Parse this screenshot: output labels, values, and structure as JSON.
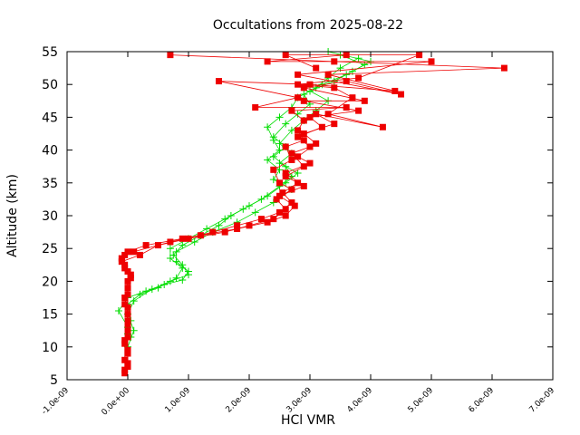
{
  "chart_data": {
    "type": "line",
    "title": "Occultations from 2025-08-22",
    "xlabel": "HCl VMR",
    "ylabel": "Altitude (km)",
    "xlim": [
      -1e-09,
      7e-09
    ],
    "ylim": [
      5,
      55
    ],
    "x_ticks": [
      {
        "value": -1e-09,
        "label": "-1.0e-09"
      },
      {
        "value": 0,
        "label": "0.0e+00"
      },
      {
        "value": 1e-09,
        "label": "1.0e-09"
      },
      {
        "value": 2e-09,
        "label": "2.0e-09"
      },
      {
        "value": 3e-09,
        "label": "3.0e-09"
      },
      {
        "value": 4e-09,
        "label": "4.0e-09"
      },
      {
        "value": 5e-09,
        "label": "5.0e-09"
      },
      {
        "value": 6e-09,
        "label": "6.0e-09"
      },
      {
        "value": 7e-09,
        "label": "7.0e-09"
      }
    ],
    "y_ticks": [
      {
        "value": 5,
        "label": "5"
      },
      {
        "value": 10,
        "label": "10"
      },
      {
        "value": 15,
        "label": "15"
      },
      {
        "value": 20,
        "label": "20"
      },
      {
        "value": 25,
        "label": "25"
      },
      {
        "value": 30,
        "label": "30"
      },
      {
        "value": 35,
        "label": "35"
      },
      {
        "value": 40,
        "label": "40"
      },
      {
        "value": 45,
        "label": "45"
      },
      {
        "value": 50,
        "label": "50"
      },
      {
        "value": 55,
        "label": "55"
      }
    ],
    "grid": false,
    "legend": "none",
    "series": [
      {
        "color": "#00dd00",
        "marker": "plus",
        "profiles": [
          [
            [
              5e-11,
              11.5
            ],
            [
              0.0,
              13
            ],
            [
              -1.5e-10,
              15.5
            ],
            [
              0.0,
              17.5
            ],
            [
              3e-10,
              18.5
            ],
            [
              6e-10,
              19.5
            ],
            [
              9e-10,
              20.2
            ],
            [
              1e-09,
              21.5
            ],
            [
              8e-10,
              23
            ],
            [
              8e-10,
              24.5
            ],
            [
              1.1e-09,
              26
            ],
            [
              1.4e-09,
              27.5
            ],
            [
              1.8e-09,
              29
            ],
            [
              2.1e-09,
              30.5
            ],
            [
              2.4e-09,
              32
            ],
            [
              2.7e-09,
              34
            ],
            [
              2.4e-09,
              35.5
            ],
            [
              2.5e-09,
              37
            ],
            [
              2.3e-09,
              38.5
            ],
            [
              2.5e-09,
              40
            ],
            [
              2.4e-09,
              41.5
            ],
            [
              2.3e-09,
              43.5
            ],
            [
              2.5e-09,
              45
            ],
            [
              2.7e-09,
              46.5
            ],
            [
              2.8e-09,
              48
            ],
            [
              3.1e-09,
              49.5
            ],
            [
              3.3e-09,
              51
            ],
            [
              3.5e-09,
              52.5
            ],
            [
              3.8e-09,
              54
            ]
          ],
          [
            [
              0.0,
              12
            ],
            [
              5e-11,
              14
            ],
            [
              0.0,
              16.5
            ],
            [
              2e-10,
              18
            ],
            [
              5e-10,
              19
            ],
            [
              8e-10,
              20.5
            ],
            [
              9e-10,
              22
            ],
            [
              7e-10,
              23.5
            ],
            [
              7e-10,
              25
            ],
            [
              1e-09,
              26.5
            ],
            [
              1.3e-09,
              28
            ],
            [
              1.6e-09,
              29.5
            ],
            [
              1.9e-09,
              31
            ],
            [
              2.2e-09,
              32.5
            ],
            [
              2.5e-09,
              34.5
            ],
            [
              2.7e-09,
              36
            ],
            [
              2.6e-09,
              37.5
            ],
            [
              2.4e-09,
              39
            ],
            [
              2.6e-09,
              40.5
            ],
            [
              2.4e-09,
              42
            ],
            [
              2.6e-09,
              44
            ],
            [
              2.8e-09,
              45.5
            ],
            [
              3e-09,
              47
            ],
            [
              2.9e-09,
              48.5
            ],
            [
              3.2e-09,
              50
            ],
            [
              3.6e-09,
              51.5
            ],
            [
              3.9e-09,
              53
            ],
            [
              3.5e-09,
              54.5
            ]
          ],
          [
            [
              0.0,
              10
            ],
            [
              1e-10,
              12.5
            ],
            [
              0.0,
              15
            ],
            [
              1e-10,
              17
            ],
            [
              4e-10,
              18.8
            ],
            [
              7e-10,
              20
            ],
            [
              1e-09,
              21
            ],
            [
              9e-10,
              22.5
            ],
            [
              7.5e-10,
              24
            ],
            [
              9e-10,
              25.5
            ],
            [
              1.2e-09,
              27
            ],
            [
              1.5e-09,
              28.5
            ],
            [
              1.7e-09,
              30
            ],
            [
              2e-09,
              31.5
            ],
            [
              2.3e-09,
              33
            ],
            [
              2.6e-09,
              35
            ],
            [
              2.8e-09,
              36.5
            ],
            [
              2.5e-09,
              38
            ],
            [
              2.7e-09,
              39.5
            ],
            [
              2.5e-09,
              41
            ],
            [
              2.7e-09,
              43
            ],
            [
              2.9e-09,
              44.5
            ],
            [
              3.1e-09,
              46
            ],
            [
              3.3e-09,
              47.5
            ],
            [
              3e-09,
              49
            ],
            [
              3.4e-09,
              50.5
            ],
            [
              3.7e-09,
              52
            ],
            [
              4e-09,
              53.5
            ],
            [
              3.3e-09,
              55
            ]
          ]
        ]
      },
      {
        "color": "#ee0000",
        "marker": "square",
        "profiles": [
          [
            [
              -5e-11,
              6.5
            ],
            [
              -5e-11,
              8
            ],
            [
              -5e-11,
              10.5
            ],
            [
              0.0,
              12.5
            ],
            [
              0.0,
              15
            ],
            [
              -5e-11,
              17.5
            ],
            [
              0.0,
              20
            ],
            [
              0.0,
              21.5
            ],
            [
              -1e-10,
              23
            ],
            [
              2e-10,
              24
            ],
            [
              5e-10,
              25.5
            ],
            [
              1e-09,
              26.5
            ],
            [
              1.6e-09,
              27.5
            ],
            [
              2e-09,
              28.5
            ],
            [
              2.4e-09,
              29.5
            ],
            [
              2.6e-09,
              31
            ],
            [
              2.45e-09,
              32.5
            ],
            [
              2.7e-09,
              34
            ],
            [
              2.5e-09,
              35
            ],
            [
              2.4e-09,
              37
            ],
            [
              2.7e-09,
              38.5
            ],
            [
              2.6e-09,
              40.5
            ],
            [
              2.9e-09,
              41.5
            ],
            [
              2.8e-09,
              43
            ],
            [
              2.9e-09,
              44.5
            ],
            [
              2.7e-09,
              46
            ],
            [
              3.6e-09,
              46.5
            ],
            [
              2.1e-09,
              46.5
            ],
            [
              2.8e-09,
              48
            ],
            [
              1.5e-09,
              50.5
            ],
            [
              3e-09,
              50
            ],
            [
              4.4e-09,
              49
            ],
            [
              3.3e-09,
              51.5
            ],
            [
              6.2e-09,
              52.5
            ],
            [
              3.4e-09,
              53.5
            ],
            [
              7e-10,
              54.5
            ]
          ],
          [
            [
              0.0,
              7
            ],
            [
              0.0,
              9
            ],
            [
              0.0,
              11.5
            ],
            [
              0.0,
              14
            ],
            [
              -5e-11,
              16.5
            ],
            [
              0.0,
              19
            ],
            [
              5e-11,
              21
            ],
            [
              -5e-11,
              22.5
            ],
            [
              -5e-11,
              24
            ],
            [
              1e-10,
              24.5
            ],
            [
              7e-10,
              26
            ],
            [
              1.4e-09,
              27.5
            ],
            [
              1.8e-09,
              28.5
            ],
            [
              2.2e-09,
              29.5
            ],
            [
              2.5e-09,
              30.5
            ],
            [
              2.7e-09,
              32
            ],
            [
              2.55e-09,
              33.5
            ],
            [
              2.8e-09,
              35
            ],
            [
              2.6e-09,
              36
            ],
            [
              2.9e-09,
              37.5
            ],
            [
              2.7e-09,
              39.5
            ],
            [
              3e-09,
              40.5
            ],
            [
              2.8e-09,
              42
            ],
            [
              3.2e-09,
              43.5
            ],
            [
              3e-09,
              45
            ],
            [
              3.8e-09,
              46
            ],
            [
              2.9e-09,
              47.5
            ],
            [
              3.9e-09,
              47.5
            ],
            [
              2.9e-09,
              49.5
            ],
            [
              3.6e-09,
              50.5
            ],
            [
              4.5e-09,
              48.5
            ],
            [
              2.8e-09,
              51.5
            ],
            [
              5e-09,
              53.5
            ],
            [
              2.3e-09,
              53.5
            ],
            [
              3.6e-09,
              54.5
            ]
          ],
          [
            [
              -5e-11,
              6
            ],
            [
              0.0,
              7.5
            ],
            [
              0.0,
              9.5
            ],
            [
              -5e-11,
              11
            ],
            [
              0.0,
              13.5
            ],
            [
              0.0,
              16
            ],
            [
              0.0,
              18
            ],
            [
              5e-11,
              20.5
            ],
            [
              -5e-11,
              22
            ],
            [
              -1e-10,
              23.5
            ],
            [
              0.0,
              24.5
            ],
            [
              3e-10,
              25.5
            ],
            [
              9e-10,
              26.5
            ],
            [
              1.2e-09,
              27
            ],
            [
              1.8e-09,
              28
            ],
            [
              2.3e-09,
              29
            ],
            [
              2.6e-09,
              30
            ],
            [
              2.75e-09,
              31.5
            ],
            [
              2.5e-09,
              33
            ],
            [
              2.9e-09,
              34.5
            ],
            [
              2.6e-09,
              36.5
            ],
            [
              3e-09,
              38
            ],
            [
              2.8e-09,
              39
            ],
            [
              3.1e-09,
              41
            ],
            [
              2.9e-09,
              42.5
            ],
            [
              3.4e-09,
              44
            ],
            [
              3.1e-09,
              45.5
            ],
            [
              4.2e-09,
              43.5
            ],
            [
              3.3e-09,
              45.5
            ],
            [
              3.7e-09,
              48
            ],
            [
              3.4e-09,
              49.5
            ],
            [
              2.8e-09,
              50
            ],
            [
              3.8e-09,
              51
            ],
            [
              4.8e-09,
              54.5
            ],
            [
              2.6e-09,
              54.5
            ],
            [
              3.1e-09,
              52.5
            ]
          ]
        ]
      }
    ]
  }
}
